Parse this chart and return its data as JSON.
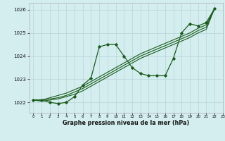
{
  "title": "",
  "xlabel": "Graphe pression niveau de la mer (hPa)",
  "ylabel": "",
  "bg_color": "#d4eef0",
  "grid_color": "#b8d4d6",
  "line_color": "#1a5c1a",
  "xlim": [
    -0.5,
    23
  ],
  "ylim": [
    1021.55,
    1026.3
  ],
  "yticks": [
    1022,
    1023,
    1024,
    1025,
    1026
  ],
  "xticks": [
    0,
    1,
    2,
    3,
    4,
    5,
    6,
    7,
    8,
    9,
    10,
    11,
    12,
    13,
    14,
    15,
    16,
    17,
    18,
    19,
    20,
    21,
    22,
    23
  ],
  "jagged_line": [
    [
      0,
      1022.1
    ],
    [
      1,
      1022.1
    ],
    [
      2,
      1022.0
    ],
    [
      3,
      1021.95
    ],
    [
      4,
      1022.0
    ],
    [
      5,
      1022.25
    ],
    [
      6,
      1022.75
    ],
    [
      7,
      1023.05
    ],
    [
      8,
      1024.4
    ],
    [
      9,
      1024.5
    ],
    [
      10,
      1024.5
    ],
    [
      11,
      1024.0
    ],
    [
      12,
      1023.5
    ],
    [
      13,
      1023.25
    ],
    [
      14,
      1023.15
    ],
    [
      15,
      1023.15
    ],
    [
      16,
      1023.15
    ],
    [
      17,
      1023.9
    ],
    [
      18,
      1025.0
    ],
    [
      19,
      1025.4
    ],
    [
      20,
      1025.3
    ],
    [
      21,
      1025.45
    ],
    [
      22,
      1026.05
    ]
  ],
  "smooth_lines": [
    [
      [
        0,
        1022.1
      ],
      [
        1,
        1022.1
      ],
      [
        2,
        1022.15
      ],
      [
        3,
        1022.2
      ],
      [
        4,
        1022.3
      ],
      [
        5,
        1022.45
      ],
      [
        6,
        1022.6
      ],
      [
        7,
        1022.8
      ],
      [
        8,
        1023.0
      ],
      [
        9,
        1023.2
      ],
      [
        10,
        1023.4
      ],
      [
        11,
        1023.6
      ],
      [
        12,
        1023.8
      ],
      [
        13,
        1024.0
      ],
      [
        14,
        1024.15
      ],
      [
        15,
        1024.3
      ],
      [
        16,
        1024.45
      ],
      [
        17,
        1024.6
      ],
      [
        18,
        1024.75
      ],
      [
        19,
        1024.9
      ],
      [
        20,
        1025.1
      ],
      [
        21,
        1025.25
      ],
      [
        22,
        1026.05
      ]
    ],
    [
      [
        0,
        1022.1
      ],
      [
        1,
        1022.1
      ],
      [
        2,
        1022.2
      ],
      [
        3,
        1022.3
      ],
      [
        4,
        1022.4
      ],
      [
        5,
        1022.55
      ],
      [
        6,
        1022.7
      ],
      [
        7,
        1022.9
      ],
      [
        8,
        1023.1
      ],
      [
        9,
        1023.3
      ],
      [
        10,
        1023.5
      ],
      [
        11,
        1023.7
      ],
      [
        12,
        1023.9
      ],
      [
        13,
        1024.1
      ],
      [
        14,
        1024.25
      ],
      [
        15,
        1024.4
      ],
      [
        16,
        1024.55
      ],
      [
        17,
        1024.7
      ],
      [
        18,
        1024.85
      ],
      [
        19,
        1025.0
      ],
      [
        20,
        1025.2
      ],
      [
        21,
        1025.35
      ],
      [
        22,
        1026.05
      ]
    ],
    [
      [
        0,
        1022.1
      ],
      [
        1,
        1022.05
      ],
      [
        2,
        1022.1
      ],
      [
        3,
        1022.15
      ],
      [
        4,
        1022.25
      ],
      [
        5,
        1022.35
      ],
      [
        6,
        1022.5
      ],
      [
        7,
        1022.7
      ],
      [
        8,
        1022.9
      ],
      [
        9,
        1023.1
      ],
      [
        10,
        1023.3
      ],
      [
        11,
        1023.5
      ],
      [
        12,
        1023.7
      ],
      [
        13,
        1023.9
      ],
      [
        14,
        1024.05
      ],
      [
        15,
        1024.2
      ],
      [
        16,
        1024.35
      ],
      [
        17,
        1024.5
      ],
      [
        18,
        1024.65
      ],
      [
        19,
        1024.8
      ],
      [
        20,
        1025.0
      ],
      [
        21,
        1025.15
      ],
      [
        22,
        1026.05
      ]
    ]
  ]
}
